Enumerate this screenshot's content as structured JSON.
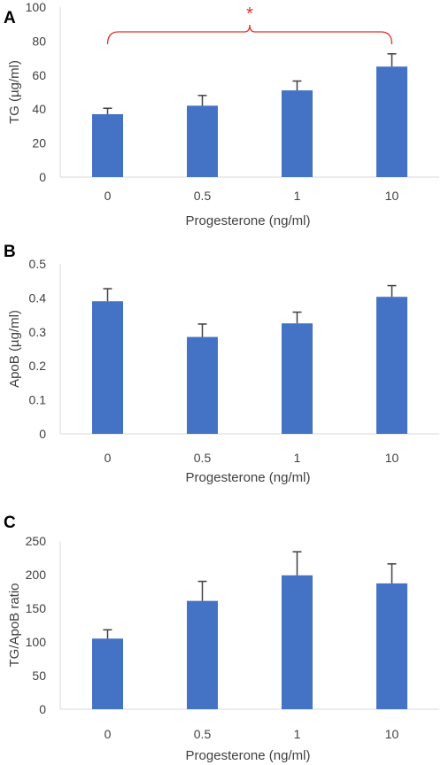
{
  "colors": {
    "bar": "#4472C4",
    "error": "#404040",
    "axis": "#D9D9D9",
    "significance": "#E0302A"
  },
  "chart_data": [
    {
      "type": "bar",
      "panel": "A",
      "categories": [
        "0",
        "0.5",
        "1",
        "10"
      ],
      "values": [
        37,
        42,
        51,
        65
      ],
      "errors": [
        3.5,
        6,
        5.5,
        7.5
      ],
      "ylabel": "TG (µg/ml)",
      "xlabel": "Progesterone (ng/ml)",
      "ylim": [
        0,
        100
      ],
      "yticks": [
        "0",
        "20",
        "40",
        "60",
        "80",
        "100"
      ],
      "grid": false,
      "annotation": {
        "text": "*",
        "from": "0",
        "to": "10"
      }
    },
    {
      "type": "bar",
      "panel": "B",
      "categories": [
        "0",
        "0.5",
        "1",
        "10"
      ],
      "values": [
        0.39,
        0.285,
        0.325,
        0.403
      ],
      "errors": [
        0.037,
        0.038,
        0.033,
        0.033
      ],
      "ylabel": "ApoB (µg/ml)",
      "xlabel": "Progesterone (ng/ml)",
      "ylim": [
        0,
        0.5
      ],
      "yticks": [
        "0",
        "0.1",
        "0.2",
        "0.3",
        "0.4",
        "0.5"
      ],
      "grid": false
    },
    {
      "type": "bar",
      "panel": "C",
      "categories": [
        "0",
        "0.5",
        "1",
        "10"
      ],
      "values": [
        105,
        161,
        199,
        187
      ],
      "errors": [
        13,
        29,
        35,
        29
      ],
      "ylabel": "TG/ApoB ratio",
      "xlabel": "Progesterone (ng/ml)",
      "ylim": [
        0,
        250
      ],
      "yticks": [
        "0",
        "50",
        "100",
        "150",
        "200",
        "250"
      ],
      "grid": false
    }
  ]
}
